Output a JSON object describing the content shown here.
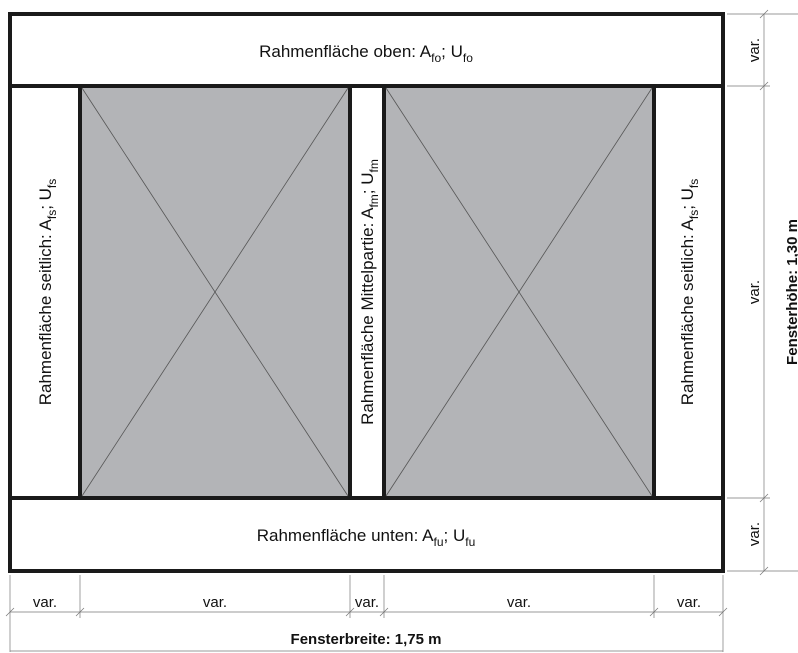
{
  "frame": {
    "top": {
      "text": "Rahmenfläche oben: A",
      "sub1": "fo",
      "sep": "; U",
      "sub2": "fo"
    },
    "bottom": {
      "text": "Rahmenfläche unten: A",
      "sub1": "fu",
      "sep": "; U",
      "sub2": "fu"
    },
    "left": {
      "text": "Rahmenfläche seitlich: A",
      "sub1": "fs",
      "sep": "; U",
      "sub2": "fs"
    },
    "middle": {
      "text": "Rahmenfläche Mittelpartie: A",
      "sub1": "fm",
      "sep": "; U",
      "sub2": "fm"
    },
    "right": {
      "text": "Rahmenfläche seitlich: A",
      "sub1": "fs",
      "sep": "; U",
      "sub2": "fs"
    }
  },
  "dimensions": {
    "var": "var.",
    "width_label": "Fensterbreite: 1,75 m",
    "height_label": "Fensterhöhe: 1,30 m"
  },
  "colors": {
    "glass": "#b3b4b7",
    "frame_stroke": "#1a1a1a"
  }
}
